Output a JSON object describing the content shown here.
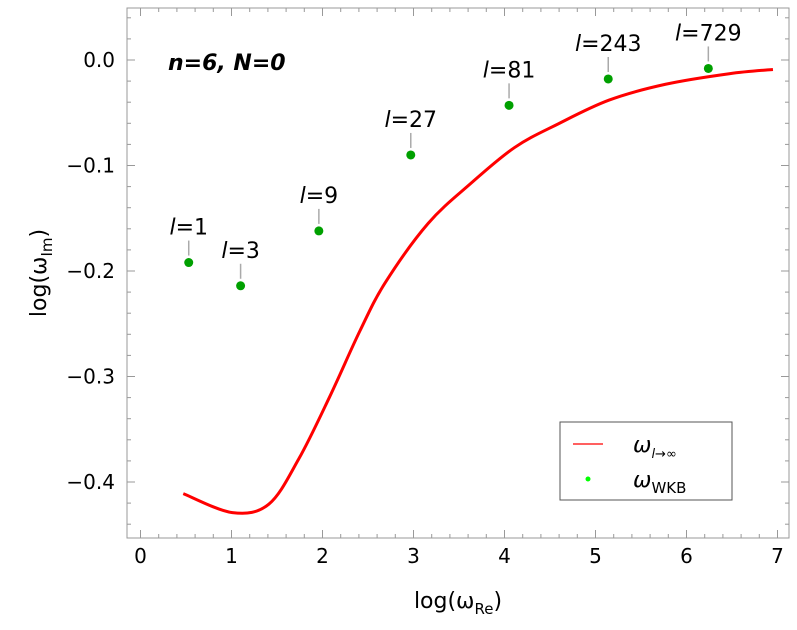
{
  "chart_data": {
    "type": "scatter",
    "title": "",
    "annotation": "n=6, N=0",
    "xlabel": "log(ω_Re)",
    "xlabel_main": "log(ω",
    "xlabel_sub": "Re",
    "ylabel_main": "log(ω",
    "ylabel_sub": "Im",
    "xlim": [
      -0.15,
      7.1
    ],
    "ylim": [
      -0.455,
      0.05
    ],
    "xticks": [
      "0",
      "1",
      "2",
      "3",
      "4",
      "5",
      "6",
      "7"
    ],
    "yticks": [
      "0.0",
      "−0.1",
      "−0.2",
      "−0.3",
      "−0.4"
    ],
    "grid": false,
    "legend_placement": "bottom-right",
    "series": [
      {
        "name": "ω_{l→∞}",
        "legend_main": "ω",
        "legend_sub": "l→∞",
        "kind": "line",
        "color": "#ff0000",
        "x": [
          0.47,
          1.01,
          1.41,
          1.74,
          2.08,
          2.41,
          2.69,
          3.16,
          3.63,
          4.11,
          4.58,
          5.15,
          5.77,
          6.47,
          6.95
        ],
        "y": [
          -0.411,
          -0.429,
          -0.421,
          -0.378,
          -0.319,
          -0.257,
          -0.211,
          -0.155,
          -0.117,
          -0.083,
          -0.061,
          -0.038,
          -0.023,
          -0.013,
          -0.009
        ]
      },
      {
        "name": "ω_WKB",
        "legend_main": "ω",
        "legend_sub": "WKB",
        "kind": "points",
        "color": "#00a000",
        "legend_color": "#00ff00",
        "labels": [
          "l=1",
          "l=3",
          "l=9",
          "l=27",
          "l=81",
          "l=243",
          "l=729"
        ],
        "x": [
          0.53,
          1.1,
          1.96,
          2.97,
          4.05,
          5.14,
          6.24
        ],
        "y": [
          -0.192,
          -0.214,
          -0.162,
          -0.09,
          -0.043,
          -0.018,
          -0.008
        ]
      }
    ]
  }
}
